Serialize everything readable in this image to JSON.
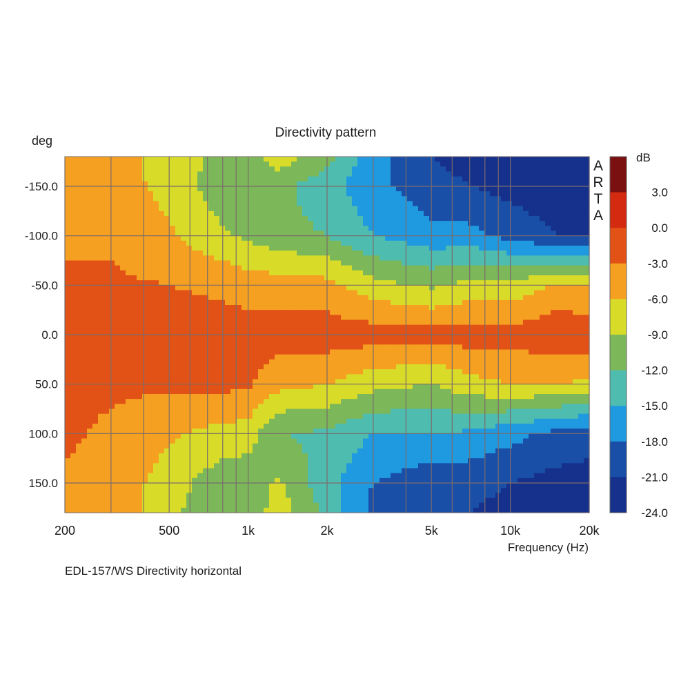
{
  "chart_data": {
    "type": "heatmap",
    "title": "Directivity pattern",
    "subtitle": "EDL-157/WS Directivity horizontal",
    "watermark": "ARTA",
    "xlabel": "Frequency (Hz)",
    "ylabel": "deg",
    "colorbar_label": "dB",
    "x_scale": "log",
    "xlim": [
      200,
      20000
    ],
    "ylim": [
      -180,
      180
    ],
    "x_tick_values": [
      200,
      500,
      1000,
      2000,
      5000,
      10000,
      20000
    ],
    "x_tick_labels": [
      "200",
      "500",
      "1k",
      "2k",
      "5k",
      "10k",
      "20k"
    ],
    "x_minor_gridlines": [
      300,
      400,
      600,
      700,
      800,
      900,
      3000,
      4000,
      6000,
      7000,
      8000,
      9000
    ],
    "y_tick_values": [
      -150,
      -100,
      -50,
      0,
      50,
      100,
      150
    ],
    "y_tick_labels": [
      "-150.0",
      "-100.0",
      "-50.0",
      "0.0",
      "50.0",
      "100.0",
      "150.0"
    ],
    "colorbar_ticks": [
      "3.0",
      "0.0",
      "-3.0",
      "-6.0",
      "-9.0",
      "-12.0",
      "-15.0",
      "-18.0",
      "-21.0",
      "-24.0"
    ],
    "levels": [
      {
        "min": 3,
        "max": 6,
        "color": "#7a1010"
      },
      {
        "min": 0,
        "max": 3,
        "color": "#d42a10"
      },
      {
        "min": -3,
        "max": 0,
        "color": "#e25216"
      },
      {
        "min": -6,
        "max": -3,
        "color": "#f5a020"
      },
      {
        "min": -9,
        "max": -6,
        "color": "#d8dc28"
      },
      {
        "min": -12,
        "max": -9,
        "color": "#7cb85a"
      },
      {
        "min": -15,
        "max": -12,
        "color": "#4fbcb0"
      },
      {
        "min": -18,
        "max": -15,
        "color": "#1f9ae0"
      },
      {
        "min": -21,
        "max": -18,
        "color": "#1a4fa8"
      },
      {
        "min": -24,
        "max": -21,
        "color": "#15318c"
      }
    ],
    "freq_nodes": [
      200,
      300,
      500,
      800,
      1000,
      1300,
      2000,
      3000,
      5000,
      7000,
      10000,
      15000,
      20000
    ],
    "angle_nodes": [
      -180,
      -150,
      -100,
      -50,
      0,
      50,
      100,
      150,
      180
    ],
    "values": [
      [
        -4.5,
        -5.0,
        -7.0,
        -10.0,
        -11.0,
        -7.0,
        -11.0,
        -17.0,
        -21.0,
        -22.0,
        -22.0,
        -23.0,
        -23.0
      ],
      [
        -4.0,
        -4.5,
        -7.0,
        -11.0,
        -12.0,
        -11.0,
        -14.0,
        -17.0,
        -20.0,
        -21.0,
        -22.0,
        -23.0,
        -23.0
      ],
      [
        -3.5,
        -3.5,
        -5.5,
        -8.5,
        -9.5,
        -11.0,
        -12.0,
        -15.0,
        -17.0,
        -17.0,
        -19.0,
        -21.0,
        -21.5
      ],
      [
        -2.5,
        -2.5,
        -3.0,
        -3.5,
        -4.5,
        -4.5,
        -5.0,
        -8.0,
        -9.5,
        -8.0,
        -8.0,
        -5.5,
        -6.0
      ],
      [
        -2.0,
        -2.0,
        -2.0,
        -1.8,
        -1.5,
        -1.5,
        -1.3,
        -1.5,
        -1.8,
        -1.5,
        -2.0,
        -0.5,
        -1.0
      ],
      [
        -2.5,
        -2.5,
        -2.5,
        -2.2,
        -2.5,
        -5.0,
        -6.0,
        -8.0,
        -9.0,
        -7.0,
        -6.0,
        -6.0,
        -6.5
      ],
      [
        -2.5,
        -3.5,
        -5.5,
        -7.0,
        -7.5,
        -12.0,
        -12.5,
        -15.0,
        -15.0,
        -15.5,
        -17.0,
        -19.0,
        -20.0
      ],
      [
        -3.5,
        -4.0,
        -7.5,
        -11.0,
        -11.0,
        -8.5,
        -14.0,
        -18.0,
        -20.0,
        -20.0,
        -21.0,
        -22.0,
        -22.0
      ],
      [
        -4.0,
        -4.0,
        -8.0,
        -12.0,
        -12.0,
        -7.0,
        -13.0,
        -19.0,
        -21.0,
        -21.0,
        -22.0,
        -23.0,
        -23.0
      ]
    ]
  }
}
